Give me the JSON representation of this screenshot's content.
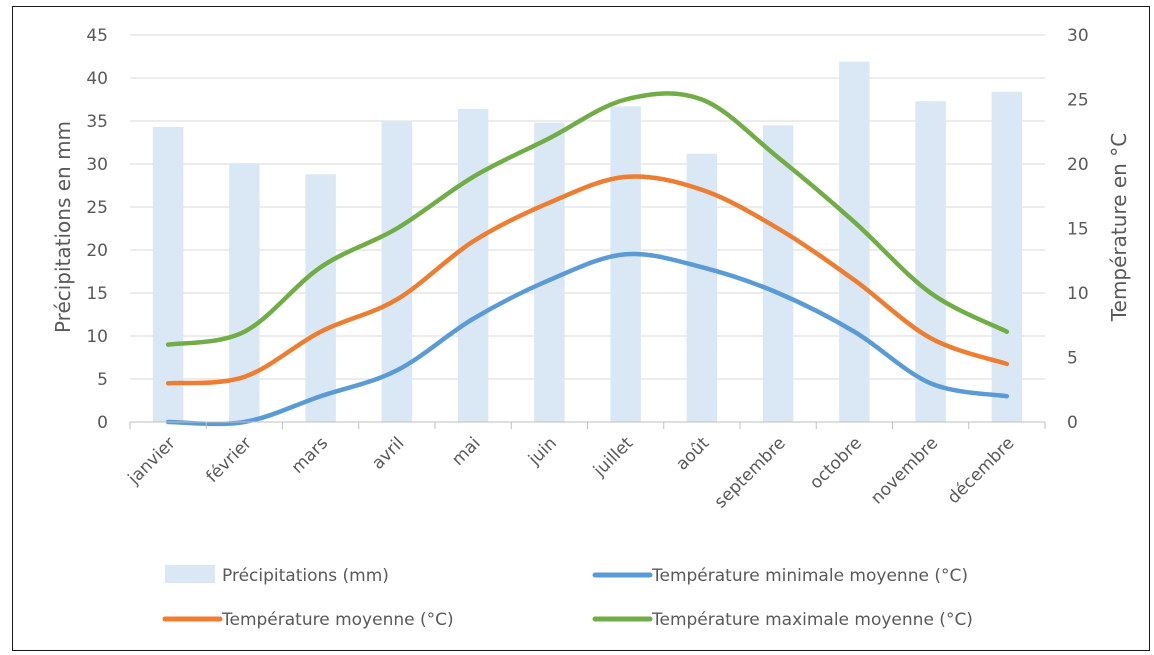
{
  "chart_data": {
    "type": "bar",
    "categories": [
      "janvier",
      "février",
      "mars",
      "avril",
      "mai",
      "juin",
      "juillet",
      "août",
      "septembre",
      "octobre",
      "novembre",
      "décembre"
    ],
    "series": [
      {
        "name": "Précipitations (mm)",
        "type": "bar",
        "axis": "left",
        "color": "#dae8f6",
        "values": [
          34.3,
          30.1,
          28.8,
          35.0,
          36.4,
          34.8,
          36.7,
          31.2,
          34.5,
          41.9,
          37.3,
          38.4
        ]
      },
      {
        "name": "Température minimale moyenne (°C)",
        "type": "line",
        "axis": "right",
        "color": "#5b9bd5",
        "values": [
          0,
          0,
          2,
          4,
          8,
          11,
          13,
          12,
          10,
          7,
          3,
          2
        ]
      },
      {
        "name": "Température moyenne (°C)",
        "type": "line",
        "axis": "right",
        "color": "#ed7d31",
        "values": [
          3,
          3.5,
          7,
          9.5,
          14,
          17,
          19,
          18,
          15,
          11,
          6.5,
          4.5
        ]
      },
      {
        "name": "Température maximale moyenne (°C)",
        "type": "line",
        "axis": "right",
        "color": "#70ad47",
        "values": [
          6,
          7,
          12,
          15,
          19,
          22,
          25,
          25,
          20.5,
          15.5,
          10,
          7
        ]
      }
    ],
    "ylabel": "Précipitations en mm",
    "y2label": "Température en °C",
    "ylim": [
      0,
      45
    ],
    "y2lim": [
      0,
      30
    ],
    "yticks": [
      "0",
      "5",
      "10",
      "15",
      "20",
      "25",
      "30",
      "35",
      "40",
      "45"
    ],
    "y2ticks": [
      "0",
      "5",
      "10",
      "15",
      "20",
      "25",
      "30"
    ],
    "grid": true,
    "legend_position": "bottom"
  }
}
